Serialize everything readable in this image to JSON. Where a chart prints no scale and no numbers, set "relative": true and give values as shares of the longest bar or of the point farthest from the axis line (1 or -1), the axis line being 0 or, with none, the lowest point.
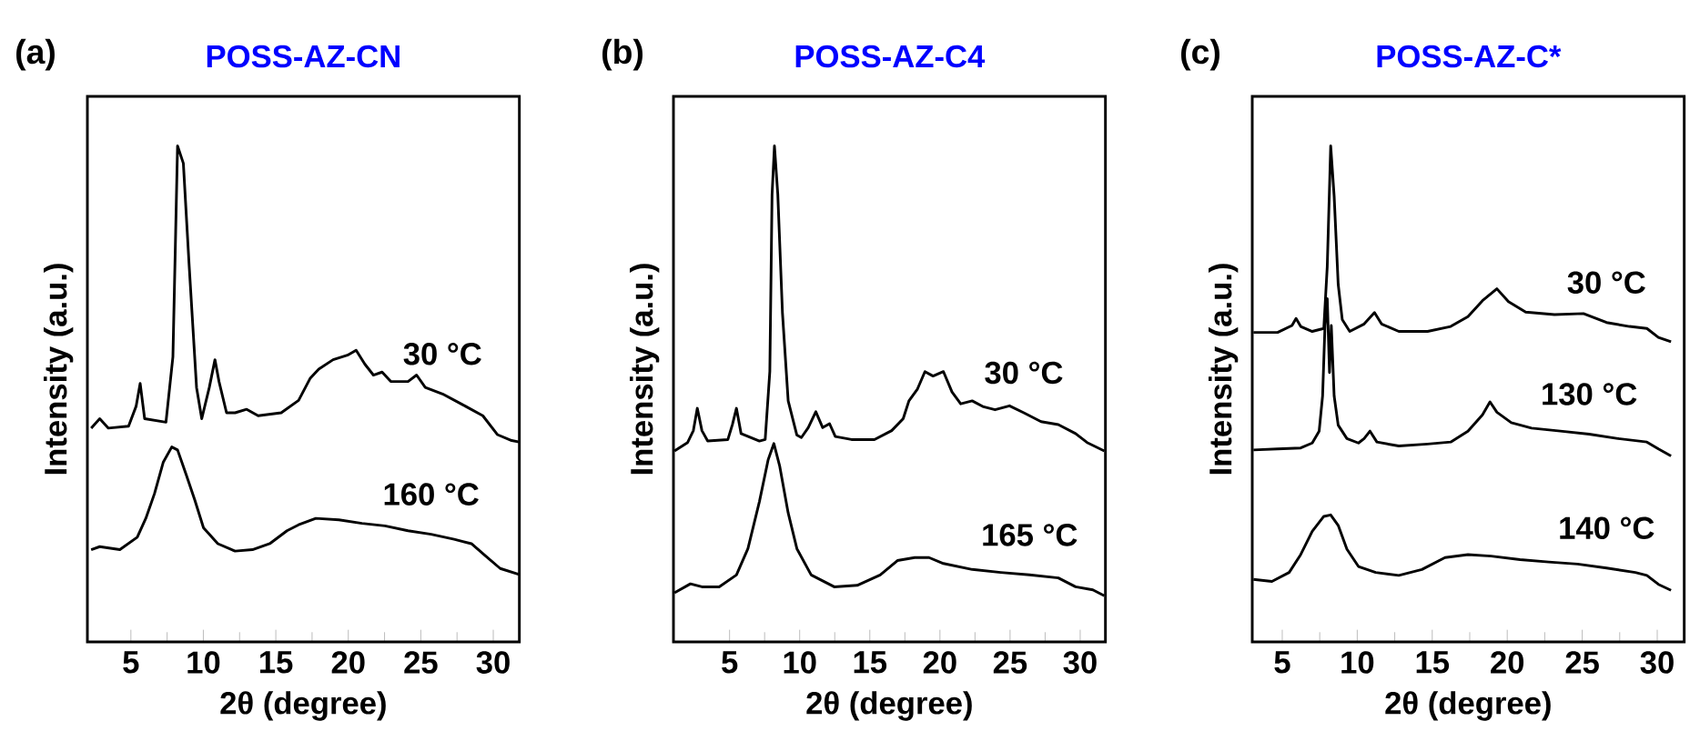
{
  "chart_data": [
    {
      "type": "line",
      "title": "POSS-AZ-CN",
      "xlabel": "2θ (degree)",
      "ylabel": "Intensity (a.u.)",
      "annotations": [
        "(a)"
      ],
      "relative": true,
      "xlim": [
        2,
        31.8
      ],
      "xticks": [
        5,
        10,
        15,
        20,
        25,
        30
      ],
      "series": [
        {
          "name": "30 °C",
          "color": "#000000",
          "x": [
            2.26,
            2.85,
            3.45,
            4.84,
            5.36,
            5.64,
            5.95,
            7.42,
            7.9,
            8.22,
            8.62,
            9.01,
            9.53,
            9.89,
            10.41,
            10.8,
            11.08,
            11.6,
            12.19,
            12.99,
            13.78,
            15.37,
            16.57,
            17.36,
            17.96,
            18.95,
            19.94,
            20.54,
            21.14,
            21.73,
            22.33,
            22.93,
            24.12,
            24.71,
            25.31,
            26.5,
            28.09,
            29.28,
            30.28,
            31.27,
            31.79
          ],
          "values": [
            0.431,
            0.45,
            0.431,
            0.435,
            0.475,
            0.521,
            0.45,
            0.443,
            0.575,
            1.0,
            0.965,
            0.764,
            0.513,
            0.45,
            0.513,
            0.569,
            0.525,
            0.462,
            0.462,
            0.469,
            0.456,
            0.462,
            0.487,
            0.531,
            0.55,
            0.569,
            0.578,
            0.588,
            0.56,
            0.538,
            0.544,
            0.525,
            0.525,
            0.538,
            0.513,
            0.5,
            0.475,
            0.456,
            0.418,
            0.406,
            0.403
          ]
        },
        {
          "name": "160 °C",
          "color": "#000000",
          "x": [
            2.26,
            2.85,
            4.24,
            5.44,
            6.03,
            6.63,
            7.23,
            7.82,
            8.22,
            8.82,
            9.41,
            10.01,
            11.0,
            12.19,
            13.39,
            14.58,
            15.77,
            16.57,
            17.76,
            19.35,
            20.94,
            22.53,
            24.12,
            25.71,
            27.3,
            28.49,
            29.48,
            30.48,
            31.79
          ],
          "values": [
            0.186,
            0.192,
            0.186,
            0.211,
            0.249,
            0.299,
            0.362,
            0.393,
            0.387,
            0.337,
            0.286,
            0.23,
            0.198,
            0.183,
            0.186,
            0.198,
            0.224,
            0.236,
            0.249,
            0.246,
            0.239,
            0.234,
            0.224,
            0.217,
            0.207,
            0.198,
            0.173,
            0.148,
            0.136
          ]
        }
      ]
    },
    {
      "type": "line",
      "title": "POSS-AZ-C4",
      "xlabel": "2θ (degree)",
      "ylabel": "Intensity (a.u.)",
      "annotations": [
        "(b)"
      ],
      "relative": true,
      "xlim": [
        1,
        31.8
      ],
      "xticks": [
        5,
        10,
        15,
        20,
        25,
        30
      ],
      "series": [
        {
          "name": "30 °C",
          "color": "#000000",
          "x": [
            1.07,
            2.01,
            2.42,
            2.7,
            3.03,
            3.44,
            4.88,
            5.2,
            5.49,
            5.82,
            7.13,
            7.54,
            7.87,
            8.03,
            8.2,
            8.44,
            8.77,
            9.18,
            9.8,
            10.12,
            10.61,
            11.15,
            11.64,
            12.13,
            12.54,
            13.69,
            15.33,
            16.56,
            17.38,
            17.79,
            18.4,
            18.93,
            19.51,
            20.25,
            20.86,
            21.48,
            22.3,
            23.11,
            23.93,
            24.96,
            25.98,
            27.21,
            28.44,
            29.67,
            30.49,
            31.72
          ],
          "values": [
            0.385,
            0.402,
            0.426,
            0.471,
            0.426,
            0.405,
            0.408,
            0.438,
            0.471,
            0.42,
            0.405,
            0.408,
            0.545,
            0.902,
            1.0,
            0.902,
            0.664,
            0.486,
            0.417,
            0.412,
            0.432,
            0.464,
            0.432,
            0.44,
            0.414,
            0.408,
            0.408,
            0.426,
            0.45,
            0.486,
            0.51,
            0.545,
            0.536,
            0.545,
            0.504,
            0.48,
            0.486,
            0.474,
            0.468,
            0.476,
            0.462,
            0.444,
            0.438,
            0.42,
            0.402,
            0.385
          ]
        },
        {
          "name": "165 °C",
          "color": "#000000",
          "x": [
            1.07,
            2.21,
            3.03,
            4.26,
            5.49,
            6.31,
            7.13,
            7.75,
            8.16,
            8.57,
            9.18,
            9.8,
            10.82,
            12.46,
            14.1,
            15.74,
            16.97,
            18.2,
            19.22,
            20.25,
            22.3,
            24.34,
            26.39,
            28.44,
            29.67,
            30.9,
            31.72
          ],
          "values": [
            0.099,
            0.117,
            0.111,
            0.111,
            0.135,
            0.188,
            0.283,
            0.367,
            0.4,
            0.355,
            0.26,
            0.188,
            0.135,
            0.111,
            0.114,
            0.135,
            0.164,
            0.17,
            0.17,
            0.158,
            0.146,
            0.14,
            0.135,
            0.129,
            0.111,
            0.105,
            0.093
          ]
        }
      ]
    },
    {
      "type": "line",
      "title": "POSS-AZ-C*",
      "xlabel": "2θ (degree)",
      "ylabel": "Intensity (a.u.)",
      "annotations": [
        "(c)"
      ],
      "relative": true,
      "xlim": [
        3,
        31.8
      ],
      "xticks": [
        5,
        10,
        15,
        20,
        25,
        30
      ],
      "series": [
        {
          "name": "30 °C",
          "color": "#000000",
          "x": [
            3.08,
            4.69,
            5.65,
            5.92,
            6.23,
            7.0,
            7.77,
            8.0,
            8.23,
            8.46,
            8.73,
            9.0,
            9.5,
            10.46,
            11.15,
            11.62,
            12.77,
            14.69,
            16.23,
            17.38,
            18.35,
            19.31,
            20.08,
            21.23,
            23.15,
            25.08,
            26.62,
            28.15,
            29.31,
            30.08,
            30.92
          ],
          "values": [
            0.624,
            0.624,
            0.638,
            0.652,
            0.636,
            0.626,
            0.632,
            0.757,
            1.0,
            0.899,
            0.721,
            0.65,
            0.626,
            0.641,
            0.664,
            0.641,
            0.626,
            0.626,
            0.636,
            0.656,
            0.688,
            0.712,
            0.686,
            0.665,
            0.66,
            0.662,
            0.644,
            0.636,
            0.632,
            0.614,
            0.605
          ]
        },
        {
          "name": "130 °C",
          "color": "#000000",
          "x": [
            3.08,
            4.69,
            6.23,
            7.0,
            7.46,
            7.69,
            7.85,
            8.0,
            8.15,
            8.27,
            8.46,
            8.73,
            9.31,
            10.08,
            10.46,
            10.85,
            11.31,
            12.77,
            14.69,
            16.23,
            17.38,
            18.35,
            18.85,
            19.31,
            20.27,
            21.62,
            23.54,
            25.46,
            27.38,
            29.31,
            30.08,
            30.92
          ],
          "values": [
            0.387,
            0.389,
            0.391,
            0.401,
            0.425,
            0.496,
            0.638,
            0.692,
            0.543,
            0.638,
            0.496,
            0.437,
            0.41,
            0.401,
            0.41,
            0.425,
            0.403,
            0.395,
            0.399,
            0.403,
            0.425,
            0.458,
            0.484,
            0.463,
            0.442,
            0.431,
            0.425,
            0.419,
            0.41,
            0.403,
            0.389,
            0.375
          ]
        },
        {
          "name": "140 °C",
          "color": "#000000",
          "x": [
            3.08,
            4.31,
            5.46,
            6.23,
            7.0,
            7.77,
            8.23,
            8.73,
            9.31,
            10.08,
            11.23,
            12.77,
            14.31,
            15.85,
            17.38,
            18.92,
            20.85,
            22.77,
            24.69,
            26.62,
            28.54,
            29.31,
            30.08,
            30.92
          ],
          "values": [
            0.126,
            0.122,
            0.14,
            0.176,
            0.223,
            0.253,
            0.256,
            0.235,
            0.187,
            0.152,
            0.14,
            0.134,
            0.146,
            0.17,
            0.176,
            0.173,
            0.166,
            0.161,
            0.157,
            0.149,
            0.14,
            0.134,
            0.116,
            0.104
          ]
        }
      ]
    }
  ]
}
